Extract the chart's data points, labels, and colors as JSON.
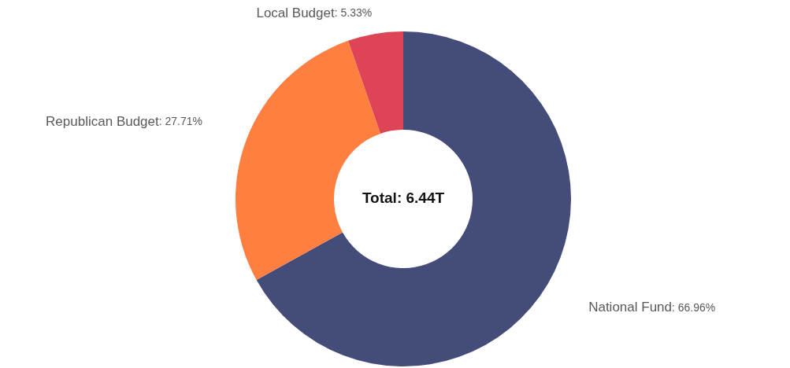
{
  "chart_data": {
    "type": "donut",
    "categories": [
      "National Fund",
      "Republican Budget",
      "Local Budget"
    ],
    "values": [
      66.96,
      27.71,
      5.33
    ],
    "colors": [
      "#444c7a",
      "#ff7f41",
      "#dd4455"
    ],
    "value_labels": [
      ": 66.96%",
      ": 27.71%",
      ": 5.33%"
    ],
    "annotations": [
      "Total: 6.44T"
    ]
  }
}
